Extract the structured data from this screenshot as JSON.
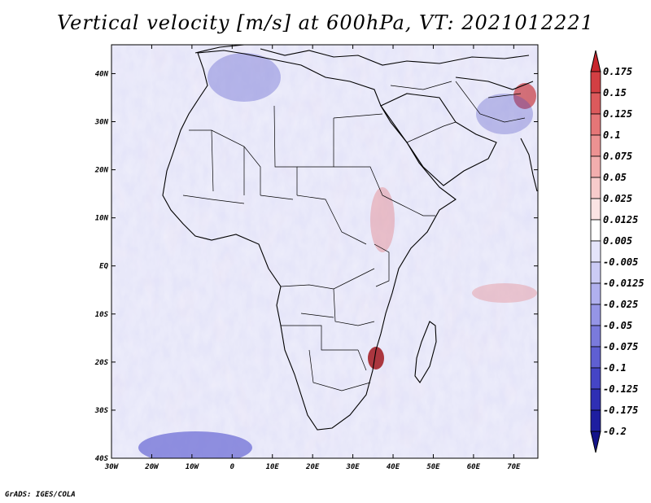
{
  "title": "Vertical velocity [m/s] at 600hPa, VT: 2021012221",
  "credit": "GrADS: IGES/COLA",
  "map": {
    "lon_range": [
      -30,
      76
    ],
    "lat_range": [
      -40,
      46
    ],
    "lon_ticks": [
      "30W",
      "20W",
      "10W",
      "0",
      "10E",
      "20E",
      "30E",
      "40E",
      "50E",
      "60E",
      "70E"
    ],
    "lat_ticks": [
      "40N",
      "30N",
      "20N",
      "10N",
      "EQ",
      "10S",
      "20S",
      "30S",
      "40S"
    ]
  },
  "colorbar": {
    "labels": [
      "0.175",
      "0.15",
      "0.125",
      "0.1",
      "0.075",
      "0.05",
      "0.025",
      "0.0125",
      "0.005",
      "-0.005",
      "-0.0125",
      "-0.025",
      "-0.05",
      "-0.075",
      "-0.1",
      "-0.125",
      "-0.175",
      "-0.2"
    ],
    "colors": [
      "#c8262d",
      "#d23f43",
      "#dc5a5c",
      "#e57677",
      "#ec9292",
      "#f2aeae",
      "#f7cbcb",
      "#fbe4e4",
      "#ffffff",
      "#e4e4fb",
      "#cbcbf5",
      "#b0b0ee",
      "#9595e6",
      "#7a7adc",
      "#5f5fd2",
      "#4545c6",
      "#2f2fb4",
      "#1e1ea0",
      "#14148a"
    ]
  }
}
